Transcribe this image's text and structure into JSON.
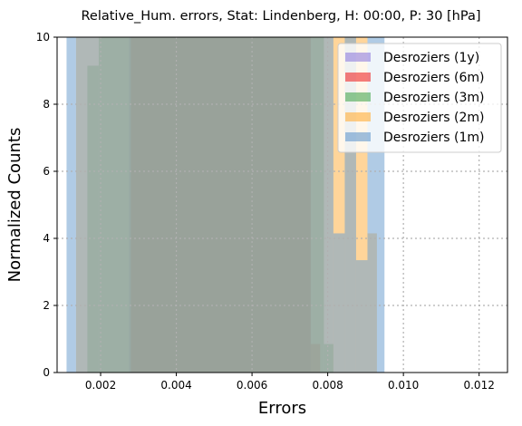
{
  "chart_data": {
    "type": "bar",
    "title": "Relative_Hum. errors, Stat: Lindenberg, H: 00:00, P: 30 [hPa]",
    "xlabel": "Errors",
    "ylabel": "Normalized Counts",
    "xlim": [
      0.00085,
      0.01275
    ],
    "ylim": [
      0,
      10
    ],
    "xticks": [
      0.002,
      0.004,
      0.006,
      0.008,
      0.01,
      0.012
    ],
    "xtick_labels": [
      "0.002",
      "0.004",
      "0.006",
      "0.008",
      "0.010",
      "0.012"
    ],
    "yticks": [
      0,
      2,
      4,
      6,
      8,
      10
    ],
    "ytick_labels": [
      "0",
      "2",
      "4",
      "6",
      "8",
      "10"
    ],
    "grid": true,
    "legend_position": "top-right",
    "series": [
      {
        "name": "Desroziers (1y)",
        "color": "#9f8fdf",
        "opacity": 0.6,
        "bins": [
          {
            "x0": 0.00275,
            "x1": 0.00755,
            "value": 10
          }
        ]
      },
      {
        "name": "Desroziers (6m)",
        "color": "#ee2a2a",
        "opacity": 0.5,
        "bins": [
          {
            "x0": 0.0028,
            "x1": 0.00755,
            "value": 10
          },
          {
            "x0": 0.00755,
            "x1": 0.0078,
            "value": 0.85
          }
        ]
      },
      {
        "name": "Desroziers (3m)",
        "color": "#56ad5e",
        "opacity": 0.55,
        "bins": [
          {
            "x0": 0.00165,
            "x1": 0.00195,
            "value": 9.15
          },
          {
            "x0": 0.00195,
            "x1": 0.0076,
            "value": 10
          },
          {
            "x0": 0.0076,
            "x1": 0.0079,
            "value": 10
          },
          {
            "x0": 0.0079,
            "x1": 0.00815,
            "value": 0.85
          }
        ]
      },
      {
        "name": "Desroziers (2m)",
        "color": "#ffb347",
        "opacity": 0.55,
        "bins": [
          {
            "x0": 0.00135,
            "x1": 0.00905,
            "value": 10
          },
          {
            "x0": 0.00905,
            "x1": 0.0093,
            "value": 4.15
          }
        ]
      },
      {
        "name": "Desroziers (1m)",
        "color": "#6fa0cf",
        "opacity": 0.55,
        "bins": [
          {
            "x0": 0.0011,
            "x1": 0.00135,
            "value": 10
          },
          {
            "x0": 0.00135,
            "x1": 0.00815,
            "value": 10
          },
          {
            "x0": 0.00815,
            "x1": 0.00845,
            "value": 4.15
          },
          {
            "x0": 0.00845,
            "x1": 0.00875,
            "value": 10
          },
          {
            "x0": 0.00875,
            "x1": 0.00905,
            "value": 3.35
          },
          {
            "x0": 0.00905,
            "x1": 0.0095,
            "value": 10
          }
        ]
      }
    ]
  }
}
